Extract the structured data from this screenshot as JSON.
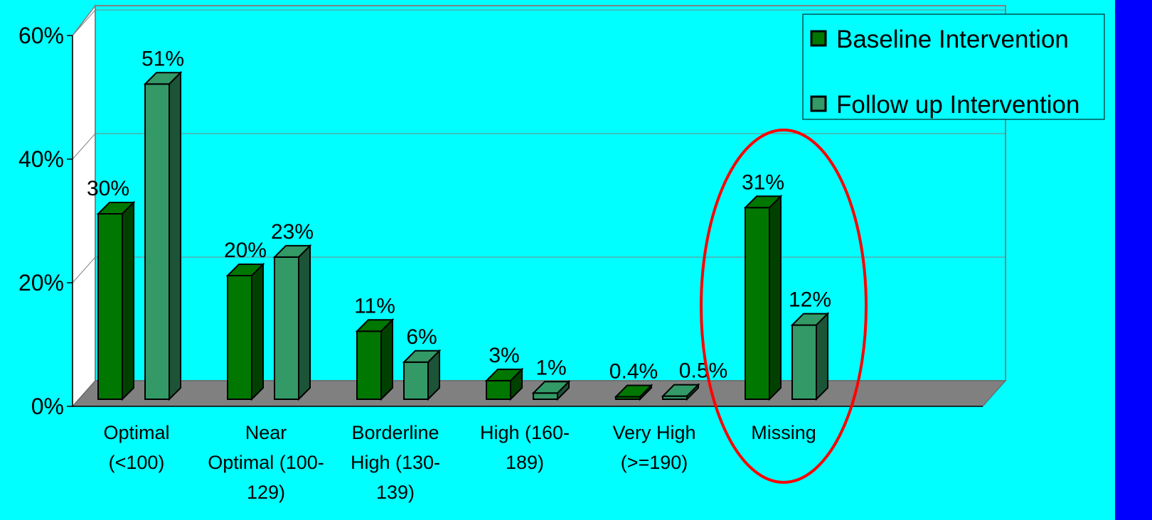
{
  "chart_data": {
    "type": "bar",
    "categories": [
      [
        "Optimal",
        "(<100)"
      ],
      [
        "Near",
        "Optimal (100-",
        "129)"
      ],
      [
        "Borderline",
        "High (130-",
        "139)"
      ],
      [
        "High (160-",
        "189)"
      ],
      [
        "Very High",
        "(>=190)"
      ],
      [
        "Missing"
      ]
    ],
    "series": [
      {
        "name": "Baseline Intervention",
        "values": [
          30,
          20,
          11,
          3,
          0.4,
          31
        ],
        "labels": [
          "30%",
          "20%",
          "11%",
          "3%",
          "0.4%",
          "31%"
        ]
      },
      {
        "name": "Follow up Intervention",
        "values": [
          51,
          23,
          6,
          1,
          0.5,
          12
        ],
        "labels": [
          "51%",
          "23%",
          "6%",
          "1%",
          "0.5%",
          "12%"
        ]
      }
    ],
    "yticks": [
      "0%",
      "20%",
      "40%",
      "60%"
    ],
    "ylim": [
      0,
      60
    ],
    "grid": true,
    "legend_position": "top-right",
    "highlighted_category": "Missing",
    "colors": {
      "background": "#00FFFF",
      "baseline": "#007700",
      "followup": "#339966",
      "floor": "#808080",
      "back_wall": "#00FFFF",
      "side_wall": "#FFFFFF",
      "highlight_ellipse": "#FF0000",
      "right_strip": "#0000FF"
    }
  }
}
